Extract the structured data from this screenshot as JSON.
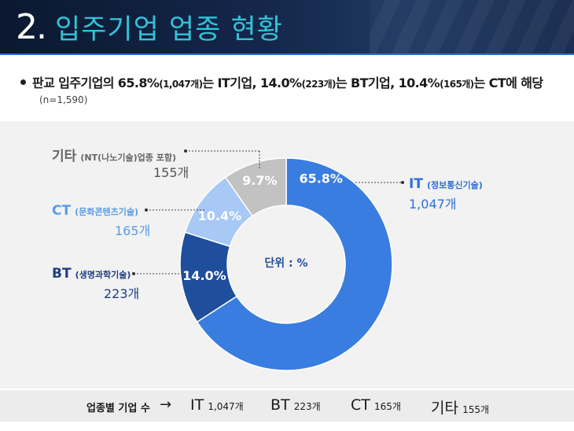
{
  "header": {
    "number": "2.",
    "title": "입주기업 업종 현황"
  },
  "summary": {
    "text_a": "판교 입주기업의 65.8%",
    "text_a_small": "(1,047개)",
    "text_b": "는 IT기업, 14.0%",
    "text_b_small": "(223개)",
    "text_c": "는 BT기업, 10.4%",
    "text_c_small": "(165개)",
    "text_d": "는 CT에 해당",
    "note": "(n=1,590)"
  },
  "colors": {
    "it": "#3a7de0",
    "bt": "#1f4e9c",
    "ct": "#a8c8f5",
    "etc": "#c2c2c2",
    "ct_text": "#5b9be8",
    "etc_text": "#666666"
  },
  "chart_data": {
    "type": "pie",
    "donut": true,
    "center_label": "단위 : %",
    "labels": [
      "IT",
      "BT",
      "CT",
      "기타"
    ],
    "values": [
      65.8,
      14.0,
      10.4,
      9.7
    ],
    "value_labels": [
      "65.8%",
      "14.0%",
      "10.4%",
      "9.7%"
    ],
    "counts": [
      "1,047개",
      "223개",
      "165개",
      "155개"
    ],
    "descriptions": [
      "(정보통신기술)",
      "(생명과학기술)",
      "(문화콘텐츠기술)",
      "(NT(나노기술)업종 포함)"
    ]
  },
  "footer": {
    "lead": "업종별 기업 수",
    "arrow": "→",
    "items": [
      {
        "key": "IT",
        "value": "1,047개"
      },
      {
        "key": "BT",
        "value": "223개"
      },
      {
        "key": "CT",
        "value": "165개"
      },
      {
        "key": "기타",
        "value": "155개"
      }
    ]
  }
}
